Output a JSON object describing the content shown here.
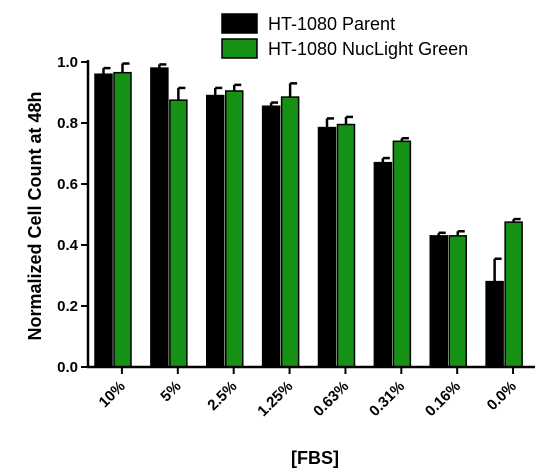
{
  "chart_data": {
    "type": "bar",
    "title": "",
    "xlabel": "[FBS]",
    "ylabel": "Normalized Cell Count at 48h",
    "categories": [
      "10%",
      "5%",
      "2.5%",
      "1.25%",
      "0.63%",
      "0.31%",
      "0.16%",
      "0.0%"
    ],
    "series": [
      {
        "name": "HT-1080 Parent",
        "color": "#000000",
        "values": [
          0.96,
          0.98,
          0.89,
          0.855,
          0.785,
          0.67,
          0.43,
          0.28
        ],
        "errors": [
          0.02,
          0.012,
          0.025,
          0.012,
          0.03,
          0.015,
          0.01,
          0.075
        ]
      },
      {
        "name": "HT-1080 NucLight Green",
        "color": "#159215",
        "values": [
          0.965,
          0.875,
          0.905,
          0.885,
          0.795,
          0.74,
          0.43,
          0.475
        ],
        "errors": [
          0.03,
          0.04,
          0.02,
          0.045,
          0.025,
          0.01,
          0.015,
          0.01
        ]
      }
    ],
    "ylim": [
      0,
      1.0
    ],
    "yticks": [
      "0.0",
      "0.2",
      "0.4",
      "0.6",
      "0.8",
      "1.0"
    ],
    "grid": false,
    "legend_position": "top-right"
  }
}
